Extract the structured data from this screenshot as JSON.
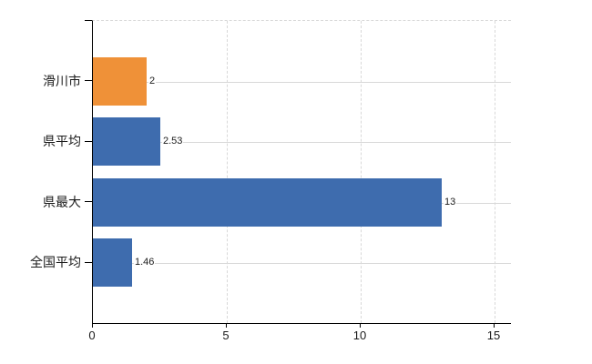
{
  "chart_data": {
    "type": "bar",
    "orientation": "horizontal",
    "title": "",
    "categories": [
      "滑川市",
      "県平均",
      "県最大",
      "全国平均"
    ],
    "values": [
      2,
      2.53,
      13,
      1.46
    ],
    "value_labels": [
      "2",
      "2.53",
      "13",
      "1.46"
    ],
    "bar_colors": [
      "#ef9138",
      "#3e6cae",
      "#3e6cae",
      "#3e6cae"
    ],
    "x_ticks": [
      "0",
      "5",
      "10",
      "15"
    ],
    "xlim": [
      0,
      15.6
    ],
    "x_tick_values": [
      0,
      5,
      10,
      15
    ],
    "grid": true,
    "legend": false
  },
  "colors": {
    "bar_orange": "#ef9138",
    "bar_blue": "#3e6cae",
    "gridline": "#d8d8d8",
    "axis": "#000000",
    "text": "#1b1b1b",
    "background": "#ffffff"
  }
}
